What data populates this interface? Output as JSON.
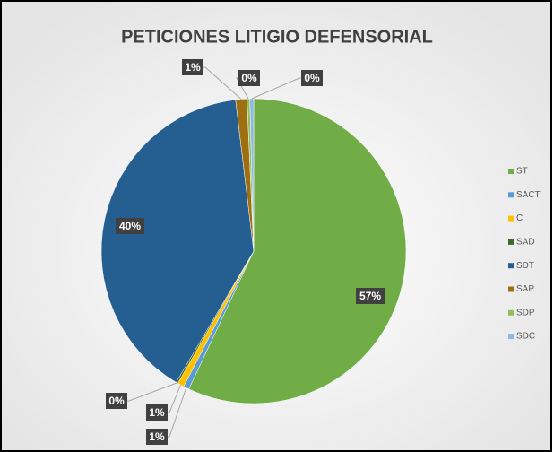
{
  "chart_data": {
    "type": "pie",
    "title": "PETICIONES LITIGIO DEFENSORIAL",
    "categories": [
      "ST",
      "SACT",
      "C",
      "SAD",
      "SDT",
      "SAP",
      "SDP",
      "SDC"
    ],
    "values": [
      57.0,
      0.6,
      0.7,
      0.2,
      39.6,
      1.2,
      0.3,
      0.4
    ],
    "value_labels": [
      "57%",
      "1%",
      "1%",
      "0%",
      "40%",
      "1%",
      "0%",
      "0%"
    ],
    "colors": [
      "#70ad47",
      "#5b9bd5",
      "#ffc000",
      "#3d6b2a",
      "#255e91",
      "#9e6f10",
      "#8fbf5a",
      "#8fb8e0"
    ],
    "legend": "right"
  }
}
